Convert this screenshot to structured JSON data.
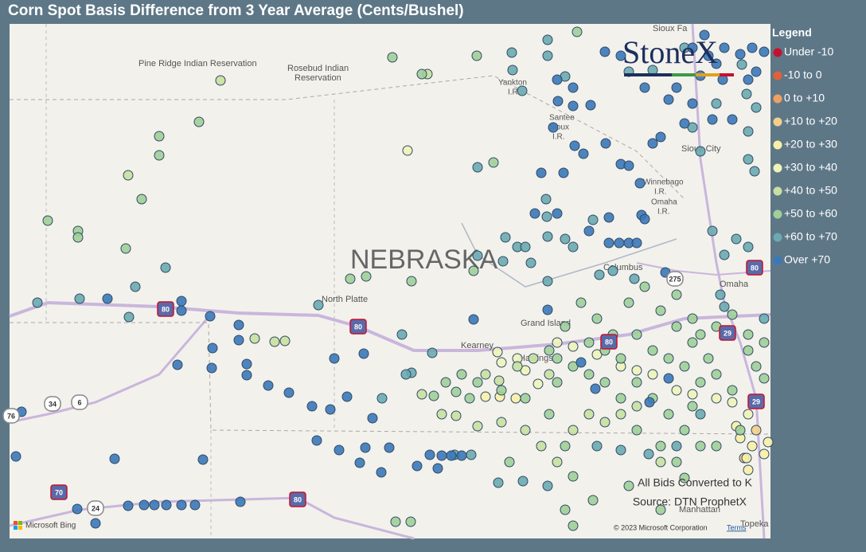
{
  "header": {
    "title": "Corn Spot Basis Difference from 3 Year Average (Cents/Bushel)"
  },
  "legend": {
    "title": "Legend",
    "items": [
      {
        "label": "Under -10",
        "color": "#c8102e"
      },
      {
        "label": "-10 to 0",
        "color": "#e0603a"
      },
      {
        "label": "0 to +10",
        "color": "#f0a060"
      },
      {
        "label": "+10 to +20",
        "color": "#f2cf8a"
      },
      {
        "label": "+20 to +30",
        "color": "#f8f0a8"
      },
      {
        "label": "+30 to +40",
        "color": "#eef3b8"
      },
      {
        "label": "+40 to +50",
        "color": "#c8e0a0"
      },
      {
        "label": "+50 to +60",
        "color": "#a0cf98"
      },
      {
        "label": "+60 to +70",
        "color": "#6aaab0"
      },
      {
        "label": "Over +70",
        "color": "#3b78b8"
      }
    ]
  },
  "logo": "StoneX",
  "map": {
    "state": "NEBRASKA",
    "places": [
      "Pine Ridge Indian Reservation",
      "Rosebud Indian",
      "Reservation",
      "Yankton",
      "I.R.",
      "Santee",
      "Sioux",
      "I.R.",
      "Winnebago",
      "I.R.",
      "Omaha",
      "I.R.",
      "Sioux City",
      "North Platte",
      "Grand Island",
      "Kearney",
      "Hastings",
      "Columbus",
      "Omaha",
      "Manhattan",
      "Topeka",
      "Sioux Fa"
    ],
    "shields": [
      "80",
      "80",
      "80",
      "80",
      "76",
      "34",
      "6",
      "70",
      "24",
      "29",
      "29",
      "275",
      "80"
    ],
    "notes": [
      "All Bids Converted to K",
      "Source: DTN ProphetX"
    ],
    "attribution": {
      "provider": "Microsoft Bing",
      "copyright": "© 2023 Microsoft Corporation",
      "terms": "Terms"
    }
  }
}
